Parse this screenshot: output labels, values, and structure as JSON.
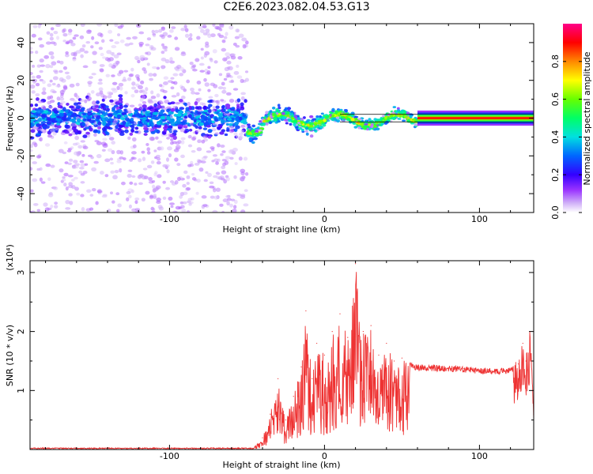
{
  "chart_data": [
    {
      "type": "heatmap",
      "title": "C2E6.2023.082.04.53.G13",
      "xlabel": "Height of straight line (km)",
      "ylabel": "Frequency (Hz)",
      "xlim": [
        -190,
        135
      ],
      "ylim": [
        -50,
        50
      ],
      "xticks": [
        -100,
        0,
        100
      ],
      "yticks": [
        -40,
        -20,
        0,
        20,
        40
      ],
      "xtick_labels": [
        "-100",
        "0",
        "100"
      ],
      "ytick_labels": [
        "-40",
        "-20",
        "0",
        "20",
        "40"
      ],
      "colorbar": {
        "label": "Normalized spectral amplitude",
        "range": [
          0,
          1
        ],
        "ticks": [
          0.0,
          0.2,
          0.4,
          0.6,
          0.8
        ],
        "tick_labels": [
          "0.0",
          "0.2",
          "0.4",
          "0.6",
          "0.8"
        ]
      },
      "regions": [
        {
          "x": [
            -190,
            -50
          ],
          "center_hz": 0,
          "core_width_hz": 14,
          "scatter_width_hz": 50,
          "amplitude": 0.18
        },
        {
          "x": [
            -50,
            60
          ],
          "center_hz": -1,
          "core_width_hz": 6,
          "amplitude": 0.45
        },
        {
          "x": [
            60,
            135
          ],
          "center_hz": 0,
          "core_width_hz": 2,
          "amplitude": 0.85
        }
      ]
    },
    {
      "type": "line",
      "xlabel": "Height of straight line (km)",
      "ylabel": "SNR (10 * v/v)",
      "y_multiplier": "(x10⁴)",
      "xlim": [
        -190,
        135
      ],
      "ylim": [
        0,
        3.2
      ],
      "xticks": [
        -100,
        0,
        100
      ],
      "yticks": [
        1,
        2,
        3
      ],
      "xtick_labels": [
        "-100",
        "0",
        "100"
      ],
      "ytick_labels": [
        "1",
        "2",
        "3"
      ],
      "color": "#ee3333",
      "series": [
        {
          "x": [
            -190,
            -150,
            -100,
            -60,
            -45,
            -40,
            -35,
            -30,
            -25,
            -20,
            -15,
            -12,
            -8,
            -5,
            0,
            5,
            10,
            15,
            20,
            25,
            30,
            35,
            40,
            45,
            50,
            55,
            60,
            70,
            80,
            90,
            100,
            110,
            120,
            125,
            128,
            130,
            133,
            135
          ],
          "y": [
            0.0,
            0.0,
            0.0,
            0.01,
            0.05,
            0.2,
            0.6,
            1.2,
            0.5,
            0.9,
            1.4,
            2.35,
            1.2,
            1.8,
            1.6,
            2.0,
            2.3,
            1.9,
            3.15,
            2.0,
            2.1,
            1.6,
            1.8,
            1.5,
            1.55,
            1.45,
            1.4,
            1.4,
            1.38,
            1.37,
            1.35,
            1.34,
            1.35,
            1.45,
            1.8,
            1.5,
            2.0,
            0.6
          ]
        }
      ]
    }
  ]
}
